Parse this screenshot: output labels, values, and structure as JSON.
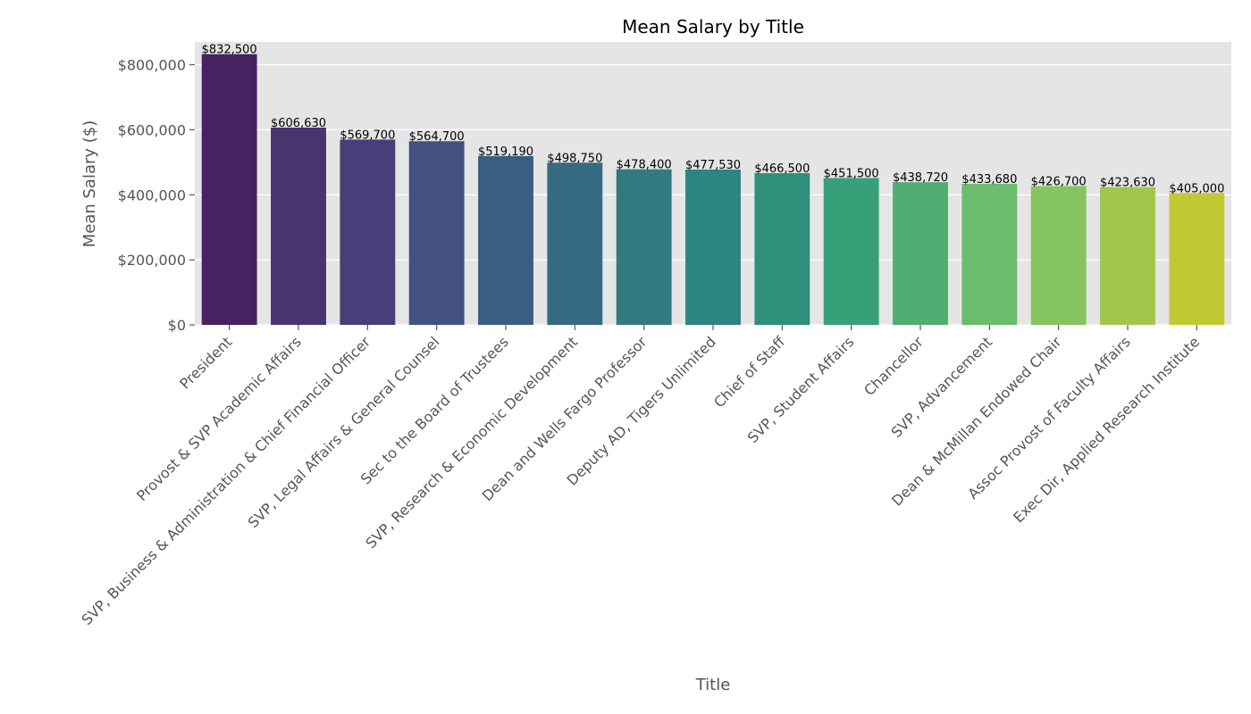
{
  "chart_data": {
    "type": "bar",
    "title": "Mean Salary by Title",
    "xlabel": "Title",
    "ylabel": "Mean Salary ($)",
    "ylim": [
      0,
      870000
    ],
    "yticks": [
      0,
      200000,
      400000,
      600000,
      800000
    ],
    "ytick_labels": [
      "$0",
      "$200,000",
      "$400,000",
      "$600,000",
      "$800,000"
    ],
    "grid": true,
    "legend": "none",
    "background": "#e5e5e5",
    "categories": [
      "President",
      "Provost & SVP Academic Affairs",
      "SVP, Business & Administration & Chief Financial Officer",
      "SVP, Legal Affairs & General Counsel",
      "Sec to the Board of Trustees",
      "SVP, Research & Economic Development",
      "Dean and Wells Fargo Professor",
      "Deputy AD, Tigers Unlimited",
      "Chief of Staff",
      "SVP, Student Affairs",
      "Chancellor",
      "SVP, Advancement",
      "Dean & McMillan Endowed Chair",
      "Assoc Provost of Faculty Affairs",
      "Exec Dir, Applied Research Institute"
    ],
    "values": [
      832500,
      606630,
      569700,
      564700,
      519190,
      498750,
      478400,
      477530,
      466500,
      451500,
      438720,
      433680,
      426700,
      423630,
      405000
    ],
    "value_labels": [
      "$832,500",
      "$606,630",
      "$569,700",
      "$564,700",
      "$519,190",
      "$498,750",
      "$478,400",
      "$477,530",
      "$466,500",
      "$451,500",
      "$438,720",
      "$433,680",
      "$426,700",
      "$423,630",
      "$405,000"
    ],
    "colors": [
      "#472160",
      "#48356f",
      "#473f7a",
      "#425180",
      "#3a5e82",
      "#366b82",
      "#327a7f",
      "#2c857e",
      "#2e8f7b",
      "#38a078",
      "#4fae72",
      "#6bbc6c",
      "#85c45e",
      "#a1c64d",
      "#c1c932"
    ]
  }
}
